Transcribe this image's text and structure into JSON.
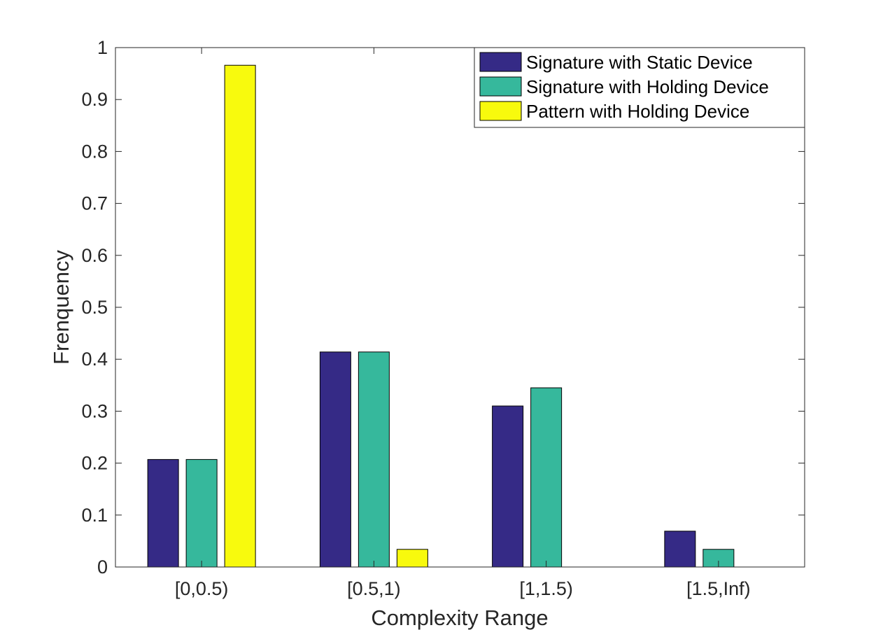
{
  "chart_data": {
    "type": "bar",
    "title": "",
    "xlabel": "Complexity Range",
    "ylabel": "Frenquency",
    "categories": [
      "[0,0.5)",
      "[0.5,1)",
      "[1,1.5)",
      "[1.5,Inf)"
    ],
    "ylim": [
      0,
      1
    ],
    "yticks": [
      "0",
      "0.1",
      "0.2",
      "0.3",
      "0.4",
      "0.5",
      "0.6",
      "0.7",
      "0.8",
      "0.9",
      "1"
    ],
    "grid": false,
    "legend_position": "top-right",
    "series": [
      {
        "name": "Signature with Static Device",
        "color": "#352a86",
        "values": [
          0.207,
          0.414,
          0.31,
          0.069
        ]
      },
      {
        "name": "Signature with Holding Device",
        "color": "#36b89c",
        "values": [
          0.207,
          0.414,
          0.345,
          0.034
        ]
      },
      {
        "name": "Pattern with Holding Device",
        "color": "#f8fa0d",
        "values": [
          0.966,
          0.034,
          0.0,
          0.0
        ]
      }
    ]
  }
}
